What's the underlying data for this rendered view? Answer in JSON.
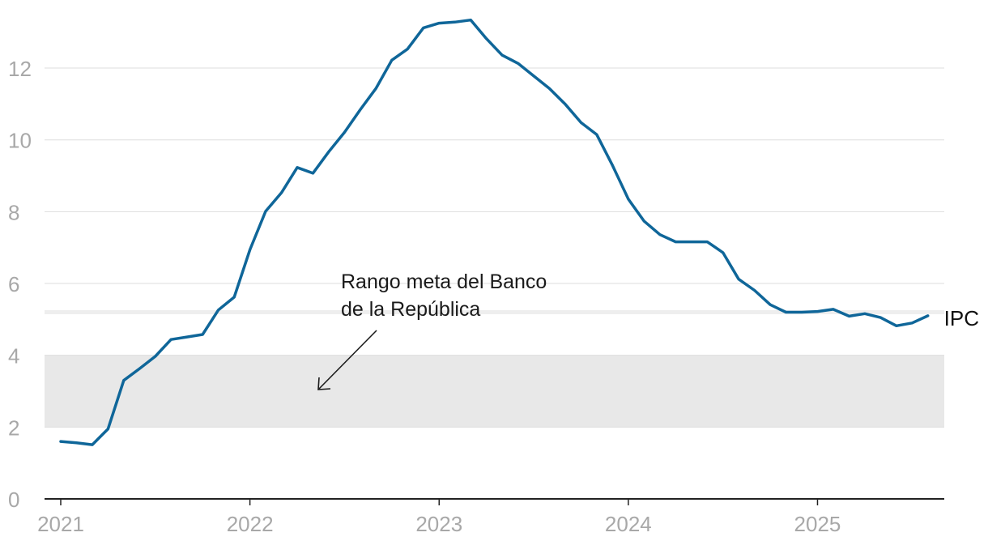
{
  "chart_data": {
    "type": "line",
    "ylim": [
      0,
      13.4
    ],
    "yticks": [
      0,
      2,
      4,
      6,
      8,
      10,
      12
    ],
    "xticks": [
      "2021",
      "2022",
      "2023",
      "2024",
      "2025"
    ],
    "xlim": [
      2021,
      2025.67
    ],
    "grid": true,
    "band": {
      "from": 2,
      "to": 4,
      "color": "#e8e8e8"
    },
    "annotation": {
      "lines": [
        "Rango meta del Banco",
        "de la República"
      ]
    },
    "series": [
      {
        "label": "IPC",
        "color": "#0f6699",
        "x": [
          2021.0,
          2021.083,
          2021.167,
          2021.25,
          2021.333,
          2021.417,
          2021.5,
          2021.583,
          2021.667,
          2021.75,
          2021.833,
          2021.917,
          2022.0,
          2022.083,
          2022.167,
          2022.25,
          2022.333,
          2022.417,
          2022.5,
          2022.583,
          2022.667,
          2022.75,
          2022.833,
          2022.917,
          2023.0,
          2023.083,
          2023.167,
          2023.25,
          2023.333,
          2023.417,
          2023.5,
          2023.583,
          2023.667,
          2023.75,
          2023.833,
          2023.917,
          2024.0,
          2024.083,
          2024.167,
          2024.25,
          2024.333,
          2024.417,
          2024.5,
          2024.583,
          2024.667,
          2024.75,
          2024.833,
          2024.917,
          2025.0,
          2025.083,
          2025.167,
          2025.25,
          2025.333,
          2025.417,
          2025.5,
          2025.583
        ],
        "y": [
          1.6,
          1.56,
          1.51,
          1.95,
          3.3,
          3.63,
          3.97,
          4.44,
          4.51,
          4.58,
          5.26,
          5.62,
          6.94,
          8.01,
          8.53,
          9.23,
          9.07,
          9.67,
          10.21,
          10.84,
          11.44,
          12.22,
          12.53,
          13.12,
          13.25,
          13.28,
          13.34,
          12.82,
          12.36,
          12.13,
          11.78,
          11.43,
          10.99,
          10.48,
          10.15,
          9.28,
          8.35,
          7.74,
          7.36,
          7.16,
          7.16,
          7.16,
          6.86,
          6.12,
          5.81,
          5.41,
          5.2,
          5.2,
          5.22,
          5.28,
          5.09,
          5.16,
          5.05,
          4.82,
          4.9,
          5.1
        ]
      }
    ]
  }
}
